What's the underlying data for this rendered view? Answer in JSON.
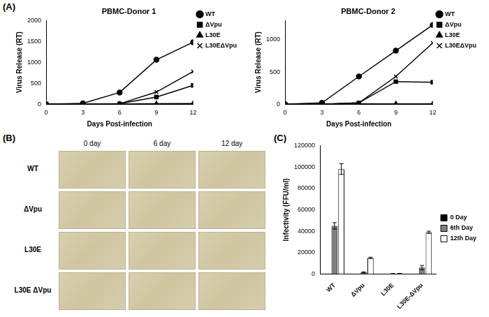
{
  "chart_data": [
    {
      "type": "line",
      "title": "PBMC-Donor 1",
      "x_label": "Days Post-infection",
      "y_label": "Virus Release (RT)",
      "x": [
        0,
        3,
        6,
        9,
        12
      ],
      "xlim": [
        0,
        12
      ],
      "xticks": [
        0,
        3,
        6,
        9,
        12
      ],
      "ylim": [
        0,
        2000
      ],
      "yticks": [
        0,
        500,
        1000,
        1500,
        2000
      ],
      "grid": false,
      "legend": "right",
      "series": [
        {
          "name": "WT",
          "color": "#000000",
          "marker": "circle",
          "line_style": "solid",
          "values": [
            0,
            20,
            280,
            1060,
            1480
          ]
        },
        {
          "name": "ΔVpu",
          "color": "#000000",
          "marker": "square",
          "line_style": "solid",
          "values": [
            0,
            0,
            10,
            170,
            450
          ]
        },
        {
          "name": "L30E",
          "color": "#000000",
          "marker": "triangle",
          "line_style": "solid",
          "values": [
            0,
            0,
            5,
            10,
            15
          ]
        },
        {
          "name": "L30EΔVpu",
          "color": "#000000",
          "marker": "x",
          "line_style": "solid",
          "values": [
            0,
            0,
            10,
            290,
            780
          ]
        }
      ]
    },
    {
      "type": "line",
      "title": "PBMC-Donor 2",
      "x_label": "Days Post-infection",
      "y_label": "Virus Release (RT)",
      "x": [
        0,
        3,
        6,
        9,
        12
      ],
      "xlim": [
        0,
        12
      ],
      "xticks": [
        0,
        3,
        6,
        9,
        12
      ],
      "ylim": [
        0,
        1300
      ],
      "yticks": [
        0,
        500,
        1000
      ],
      "grid": false,
      "legend": "right",
      "series": [
        {
          "name": "WT",
          "color": "#000000",
          "marker": "circle",
          "line_style": "solid",
          "values": [
            0,
            20,
            430,
            830,
            1230
          ]
        },
        {
          "name": "ΔVpu",
          "color": "#000000",
          "marker": "square",
          "line_style": "solid",
          "values": [
            0,
            0,
            20,
            350,
            340
          ]
        },
        {
          "name": "L30E",
          "color": "#000000",
          "marker": "triangle",
          "line_style": "solid",
          "values": [
            0,
            0,
            5,
            5,
            5
          ]
        },
        {
          "name": "L30EΔVpu",
          "color": "#000000",
          "marker": "x",
          "line_style": "solid",
          "values": [
            0,
            0,
            20,
            430,
            950
          ]
        }
      ]
    },
    {
      "type": "bar",
      "y_label": "Infectivity (FFU/ml)",
      "categories": [
        "WT",
        "ΔVpu",
        "L30E",
        "L30E-ΔVpu"
      ],
      "ylim": [
        0,
        120000
      ],
      "yticks": [
        0,
        20000,
        40000,
        60000,
        80000,
        100000,
        120000
      ],
      "grid": false,
      "legend": "right",
      "series": [
        {
          "name": "0 Day",
          "color": "#000000",
          "values": [
            500,
            200,
            100,
            200
          ],
          "errors": [
            0,
            0,
            0,
            0
          ]
        },
        {
          "name": "6th Day",
          "color": "#808080",
          "values": [
            45000,
            1500,
            300,
            6000
          ],
          "errors": [
            3000,
            500,
            100,
            2000
          ]
        },
        {
          "name": "12th Day",
          "color": "#ffffff",
          "values": [
            98000,
            15000,
            500,
            39000
          ],
          "errors": [
            5000,
            700,
            100,
            1000
          ]
        }
      ]
    }
  ],
  "figure": {
    "panel_labels": [
      "(A)",
      "(B)",
      "(C)"
    ],
    "image_grid": {
      "columns": [
        "0 day",
        "6 day",
        "12 day"
      ],
      "rows": [
        "WT",
        "ΔVpu",
        "L30E",
        "L30E ΔVpu"
      ]
    }
  }
}
